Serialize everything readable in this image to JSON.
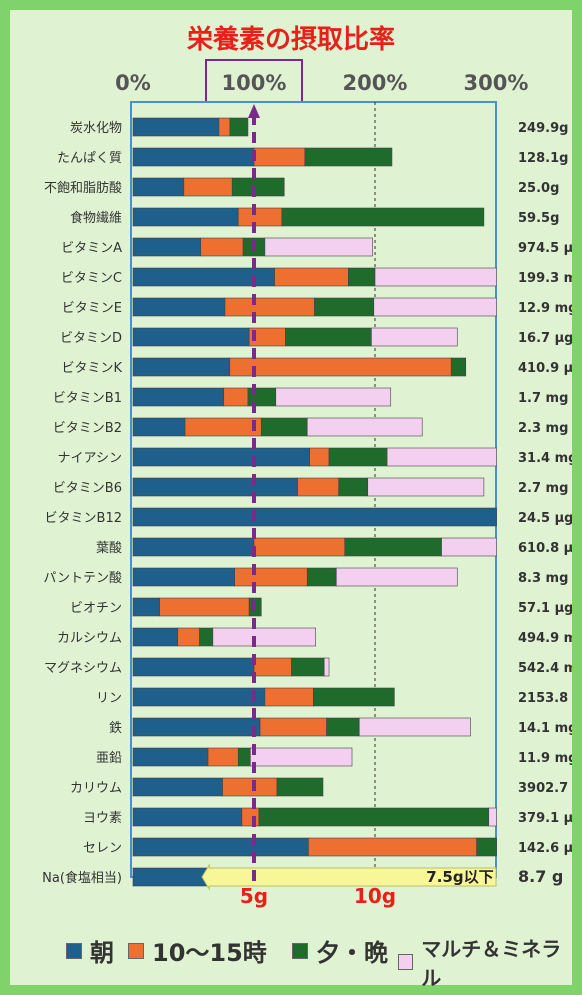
{
  "chart_data": {
    "type": "bar",
    "orientation": "horizontal",
    "stacked": true,
    "title": "栄養素の摂取比率",
    "x_ticks": [
      "0%",
      "100%",
      "200%",
      "300%"
    ],
    "xlim": [
      0,
      300
    ],
    "categories": [
      "炭水化物",
      "たんぱく質",
      "不飽和脂肪酸",
      "食物繊維",
      "ビタミンA",
      "ビタミンC",
      "ビタミンE",
      "ビタミンD",
      "ビタミンK",
      "ビタミンB1",
      "ビタミンB2",
      "ナイアシン",
      "ビタミンB6",
      "ビタミンB12",
      "葉酸",
      "パントテン酸",
      "ビオチン",
      "カルシウム",
      "マグネシウム",
      "リン",
      "鉄",
      "亜鉛",
      "カリウム",
      "ヨウ素",
      "セレン",
      "Na(食塩相当)"
    ],
    "amounts": [
      "249.9g",
      "128.1g",
      "25.0g",
      "59.5g",
      "974.5 μg",
      "199.3 mg",
      "12.9 mg",
      "16.7 μg",
      "410.9 μg",
      "1.7 mg",
      "2.3 mg",
      "31.4 mg",
      "2.7 mg",
      "24.5 μg",
      "610.8 μg",
      "8.3 mg",
      "57.1 μg",
      "494.9 mg",
      "542.4 mg",
      "2153.8 mg",
      "14.1 mg",
      "11.9 mg",
      "3902.7 mg",
      "379.1 μg",
      "142.6 μg",
      "8.7 g"
    ],
    "series": [
      {
        "name": "朝",
        "color": "#1f5f8b",
        "values": [
          71,
          100,
          42,
          87,
          56,
          117,
          76,
          96,
          80,
          75,
          43,
          146,
          136,
          305,
          100,
          84,
          22,
          37,
          100,
          109,
          105,
          62,
          74,
          90,
          145,
          96
        ]
      },
      {
        "name": "10～15時",
        "color": "#ee7030",
        "values": [
          9,
          42,
          40,
          36,
          35,
          61,
          74,
          30,
          183,
          20,
          63,
          16,
          34,
          0,
          75,
          60,
          74,
          18,
          31,
          40,
          55,
          25,
          45,
          14,
          139,
          9
        ]
      },
      {
        "name": "夕・晩",
        "color": "#1e6b2c",
        "values": [
          15,
          72,
          43,
          167,
          18,
          22,
          49,
          71,
          12,
          23,
          38,
          48,
          24,
          0,
          80,
          24,
          10,
          11,
          27,
          67,
          27,
          10,
          38,
          190,
          23,
          70
        ]
      },
      {
        "name": "マルチ＆ミネラル",
        "color": "#f3cff0",
        "values": [
          0,
          0,
          0,
          0,
          89,
          101,
          103,
          71,
          0,
          95,
          95,
          104,
          96,
          0,
          47,
          100,
          0,
          85,
          4,
          0,
          92,
          84,
          0,
          9,
          0,
          0
        ]
      }
    ],
    "reference_line": {
      "value": 100,
      "style": "dashed",
      "color": "#7a2a8a"
    },
    "na_labels": {
      "top": "5g",
      "mid": "10g",
      "limit": "7.5g以下"
    }
  }
}
